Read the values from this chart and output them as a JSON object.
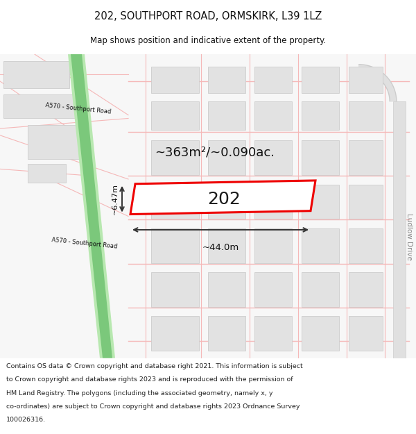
{
  "title_line1": "202, SOUTHPORT ROAD, ORMSKIRK, L39 1LZ",
  "title_line2": "Map shows position and indicative extent of the property.",
  "footer_lines": [
    "Contains OS data © Crown copyright and database right 2021. This information is subject",
    "to Crown copyright and database rights 2023 and is reproduced with the permission of",
    "HM Land Registry. The polygons (including the associated geometry, namely x, y",
    "co-ordinates) are subject to Crown copyright and database rights 2023 Ordnance Survey",
    "100026316."
  ],
  "bg_color": "#ffffff",
  "map_bg": "#f7f7f7",
  "property_color": "#ee0000",
  "building_fill": "#e2e2e2",
  "building_stroke": "#cccccc",
  "road_pink": "#f5b8b8",
  "road_pink2": "#e8a0a0",
  "green_road_main": "#7bc87b",
  "green_road_light": "#b8e8b0",
  "area_text": "~363m²/~0.090ac.",
  "width_text": "~44.0m",
  "height_text": "~6.47m",
  "number_text": "202",
  "road_label": "A570 - Southport Road",
  "right_road_label": "Ludlow Drive",
  "arrow_color": "#333333",
  "text_color": "#111111",
  "ludlow_color": "#888888"
}
